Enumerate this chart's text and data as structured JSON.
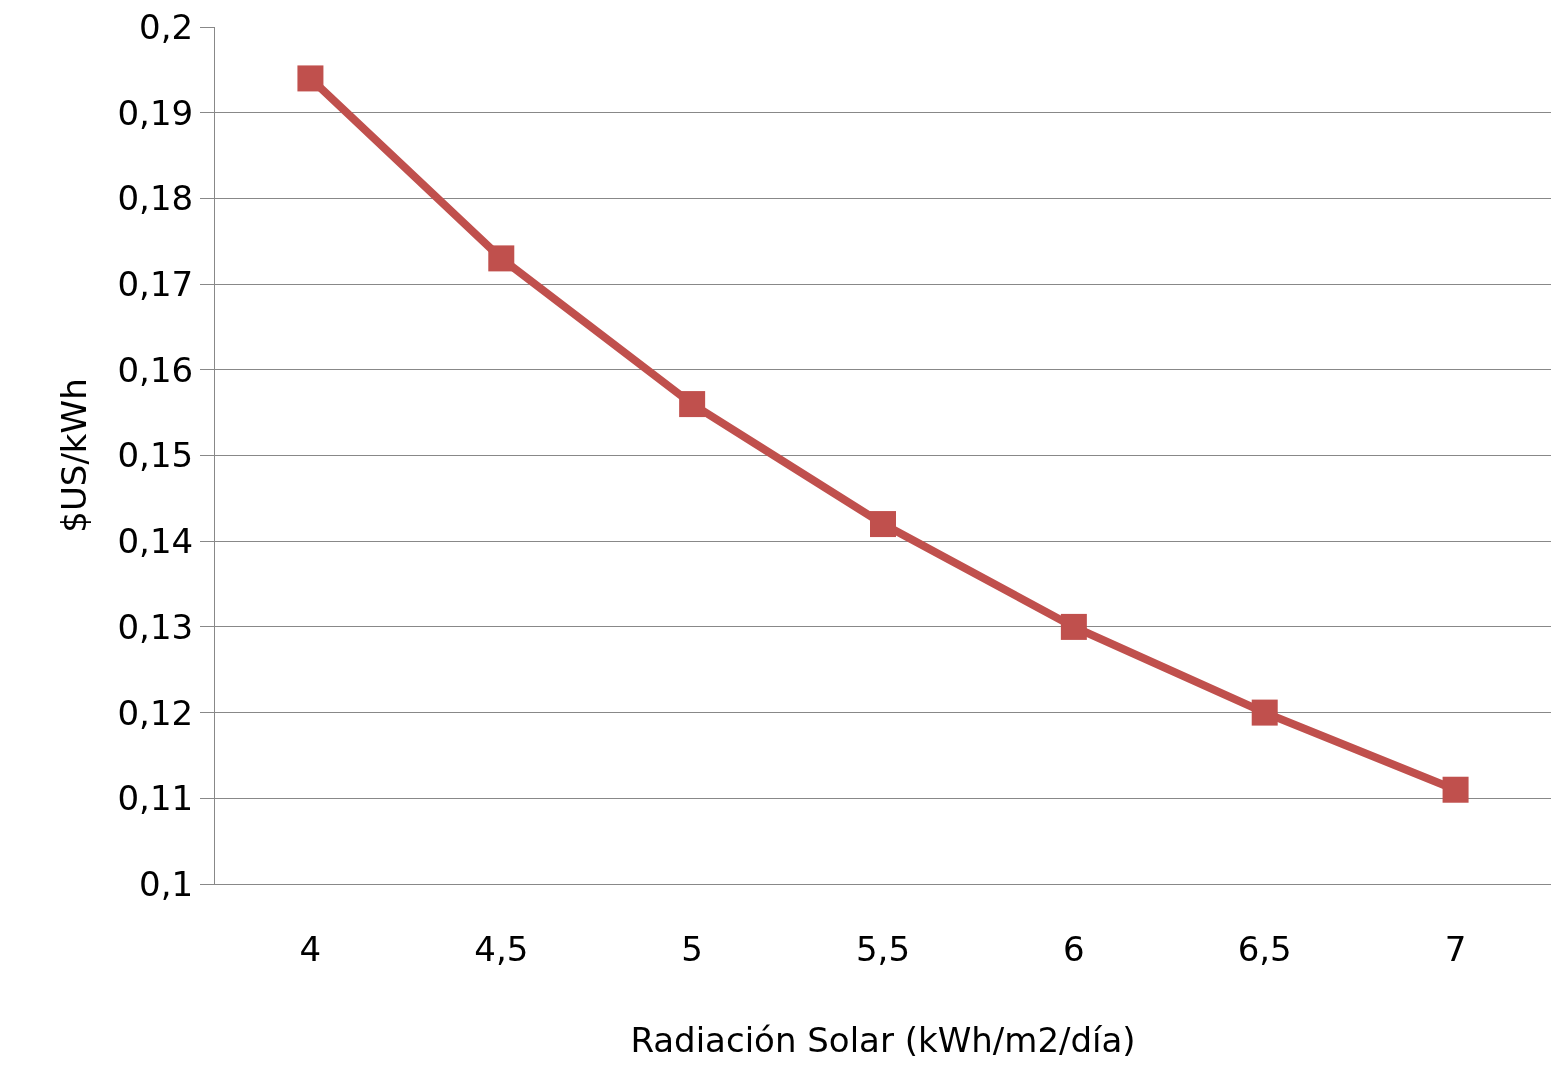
{
  "chart_data": {
    "type": "line",
    "xlabel": "Radiación Solar (kWh/m2/día)",
    "ylabel": "$US/kWh",
    "categories": [
      "4",
      "4,5",
      "5",
      "5,5",
      "6",
      "6,5",
      "7"
    ],
    "series": [
      {
        "color": "#c0504d",
        "values": [
          0.194,
          0.173,
          0.156,
          0.142,
          0.13,
          0.12,
          0.111
        ]
      }
    ],
    "ylim": [
      0.1,
      0.2
    ],
    "yticks": [
      {
        "value": 0.1,
        "label": "0,1"
      },
      {
        "value": 0.11,
        "label": "0,11"
      },
      {
        "value": 0.12,
        "label": "0,12"
      },
      {
        "value": 0.13,
        "label": "0,13"
      },
      {
        "value": 0.14,
        "label": "0,14"
      },
      {
        "value": 0.15,
        "label": "0,15"
      },
      {
        "value": 0.16,
        "label": "0,16"
      },
      {
        "value": 0.17,
        "label": "0,17"
      },
      {
        "value": 0.18,
        "label": "0,18"
      },
      {
        "value": 0.19,
        "label": "0,19"
      },
      {
        "value": 0.2,
        "label": "0,2"
      }
    ],
    "grid": "y",
    "marker": "square",
    "line_style": "solid"
  }
}
